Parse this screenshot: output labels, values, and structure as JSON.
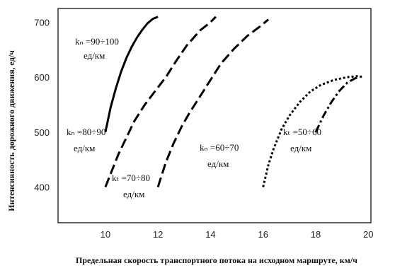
{
  "chart_data": {
    "type": "line",
    "xlabel": "Предельная скорость транспортного потока на исходном маршруте, км/ч",
    "ylabel": "Интенсивность дорожного движения, ед/ч",
    "xlim": [
      8.2,
      20.1
    ],
    "ylim": [
      335,
      725
    ],
    "xticks": [
      "10",
      "12",
      "14",
      "16",
      "18",
      "20"
    ],
    "yticks": [
      "400",
      "500",
      "600",
      "700"
    ],
    "grid": false,
    "series": [
      {
        "name": "kн =90÷100 ед/км",
        "style": "solid",
        "points": [
          [
            10.0,
            500
          ],
          [
            10.2,
            545
          ],
          [
            10.4,
            580
          ],
          [
            10.6,
            610
          ],
          [
            10.8,
            635
          ],
          [
            11.0,
            655
          ],
          [
            11.2,
            672
          ],
          [
            11.4,
            686
          ],
          [
            11.6,
            698
          ],
          [
            11.8,
            706
          ],
          [
            12.0,
            710
          ]
        ]
      },
      {
        "name": "kн =80÷90 ед/км",
        "style": "dashed",
        "points": [
          [
            10.0,
            400
          ],
          [
            10.25,
            430
          ],
          [
            10.5,
            460
          ],
          [
            10.8,
            490
          ],
          [
            11.1,
            520
          ],
          [
            11.5,
            550
          ],
          [
            11.9,
            575
          ],
          [
            12.3,
            600
          ],
          [
            12.7,
            630
          ],
          [
            13.1,
            658
          ],
          [
            13.6,
            685
          ],
          [
            14.0,
            700
          ],
          [
            14.2,
            710
          ]
        ]
      },
      {
        "name": "kн =70÷80 ед/км",
        "style": "dashed",
        "points": [
          [
            12.0,
            400
          ],
          [
            12.3,
            445
          ],
          [
            12.6,
            480
          ],
          [
            12.9,
            510
          ],
          [
            13.2,
            535
          ],
          [
            13.6,
            565
          ],
          [
            14.0,
            595
          ],
          [
            14.4,
            625
          ],
          [
            14.9,
            652
          ],
          [
            15.4,
            675
          ],
          [
            15.9,
            693
          ],
          [
            16.2,
            705
          ]
        ]
      },
      {
        "name": "kн =60÷70 ед/км",
        "style": "dotted",
        "points": [
          [
            16.0,
            400
          ],
          [
            16.2,
            440
          ],
          [
            16.4,
            470
          ],
          [
            16.7,
            505
          ],
          [
            17.0,
            530
          ],
          [
            17.4,
            555
          ],
          [
            17.8,
            574
          ],
          [
            18.2,
            586
          ],
          [
            18.7,
            595
          ],
          [
            19.2,
            600
          ],
          [
            19.6,
            602
          ]
        ]
      },
      {
        "name": "kн =50÷60 ед/км",
        "style": "dash-dot",
        "points": [
          [
            18.0,
            500
          ],
          [
            18.3,
            530
          ],
          [
            18.6,
            555
          ],
          [
            18.9,
            575
          ],
          [
            19.2,
            590
          ],
          [
            19.5,
            598
          ],
          [
            19.8,
            602
          ]
        ]
      }
    ],
    "annotations": [
      {
        "line1": "kₙ =90÷100",
        "line2": "ед/км"
      },
      {
        "line1": "kₙ =80÷90",
        "line2": "ед/км"
      },
      {
        "line1": "kₜ =70÷80",
        "line2": "ед/км"
      },
      {
        "line1": "kₙ =60÷70",
        "line2": "ед/км"
      },
      {
        "line1": "kₜ =50÷60",
        "line2": "ед/км"
      }
    ]
  }
}
